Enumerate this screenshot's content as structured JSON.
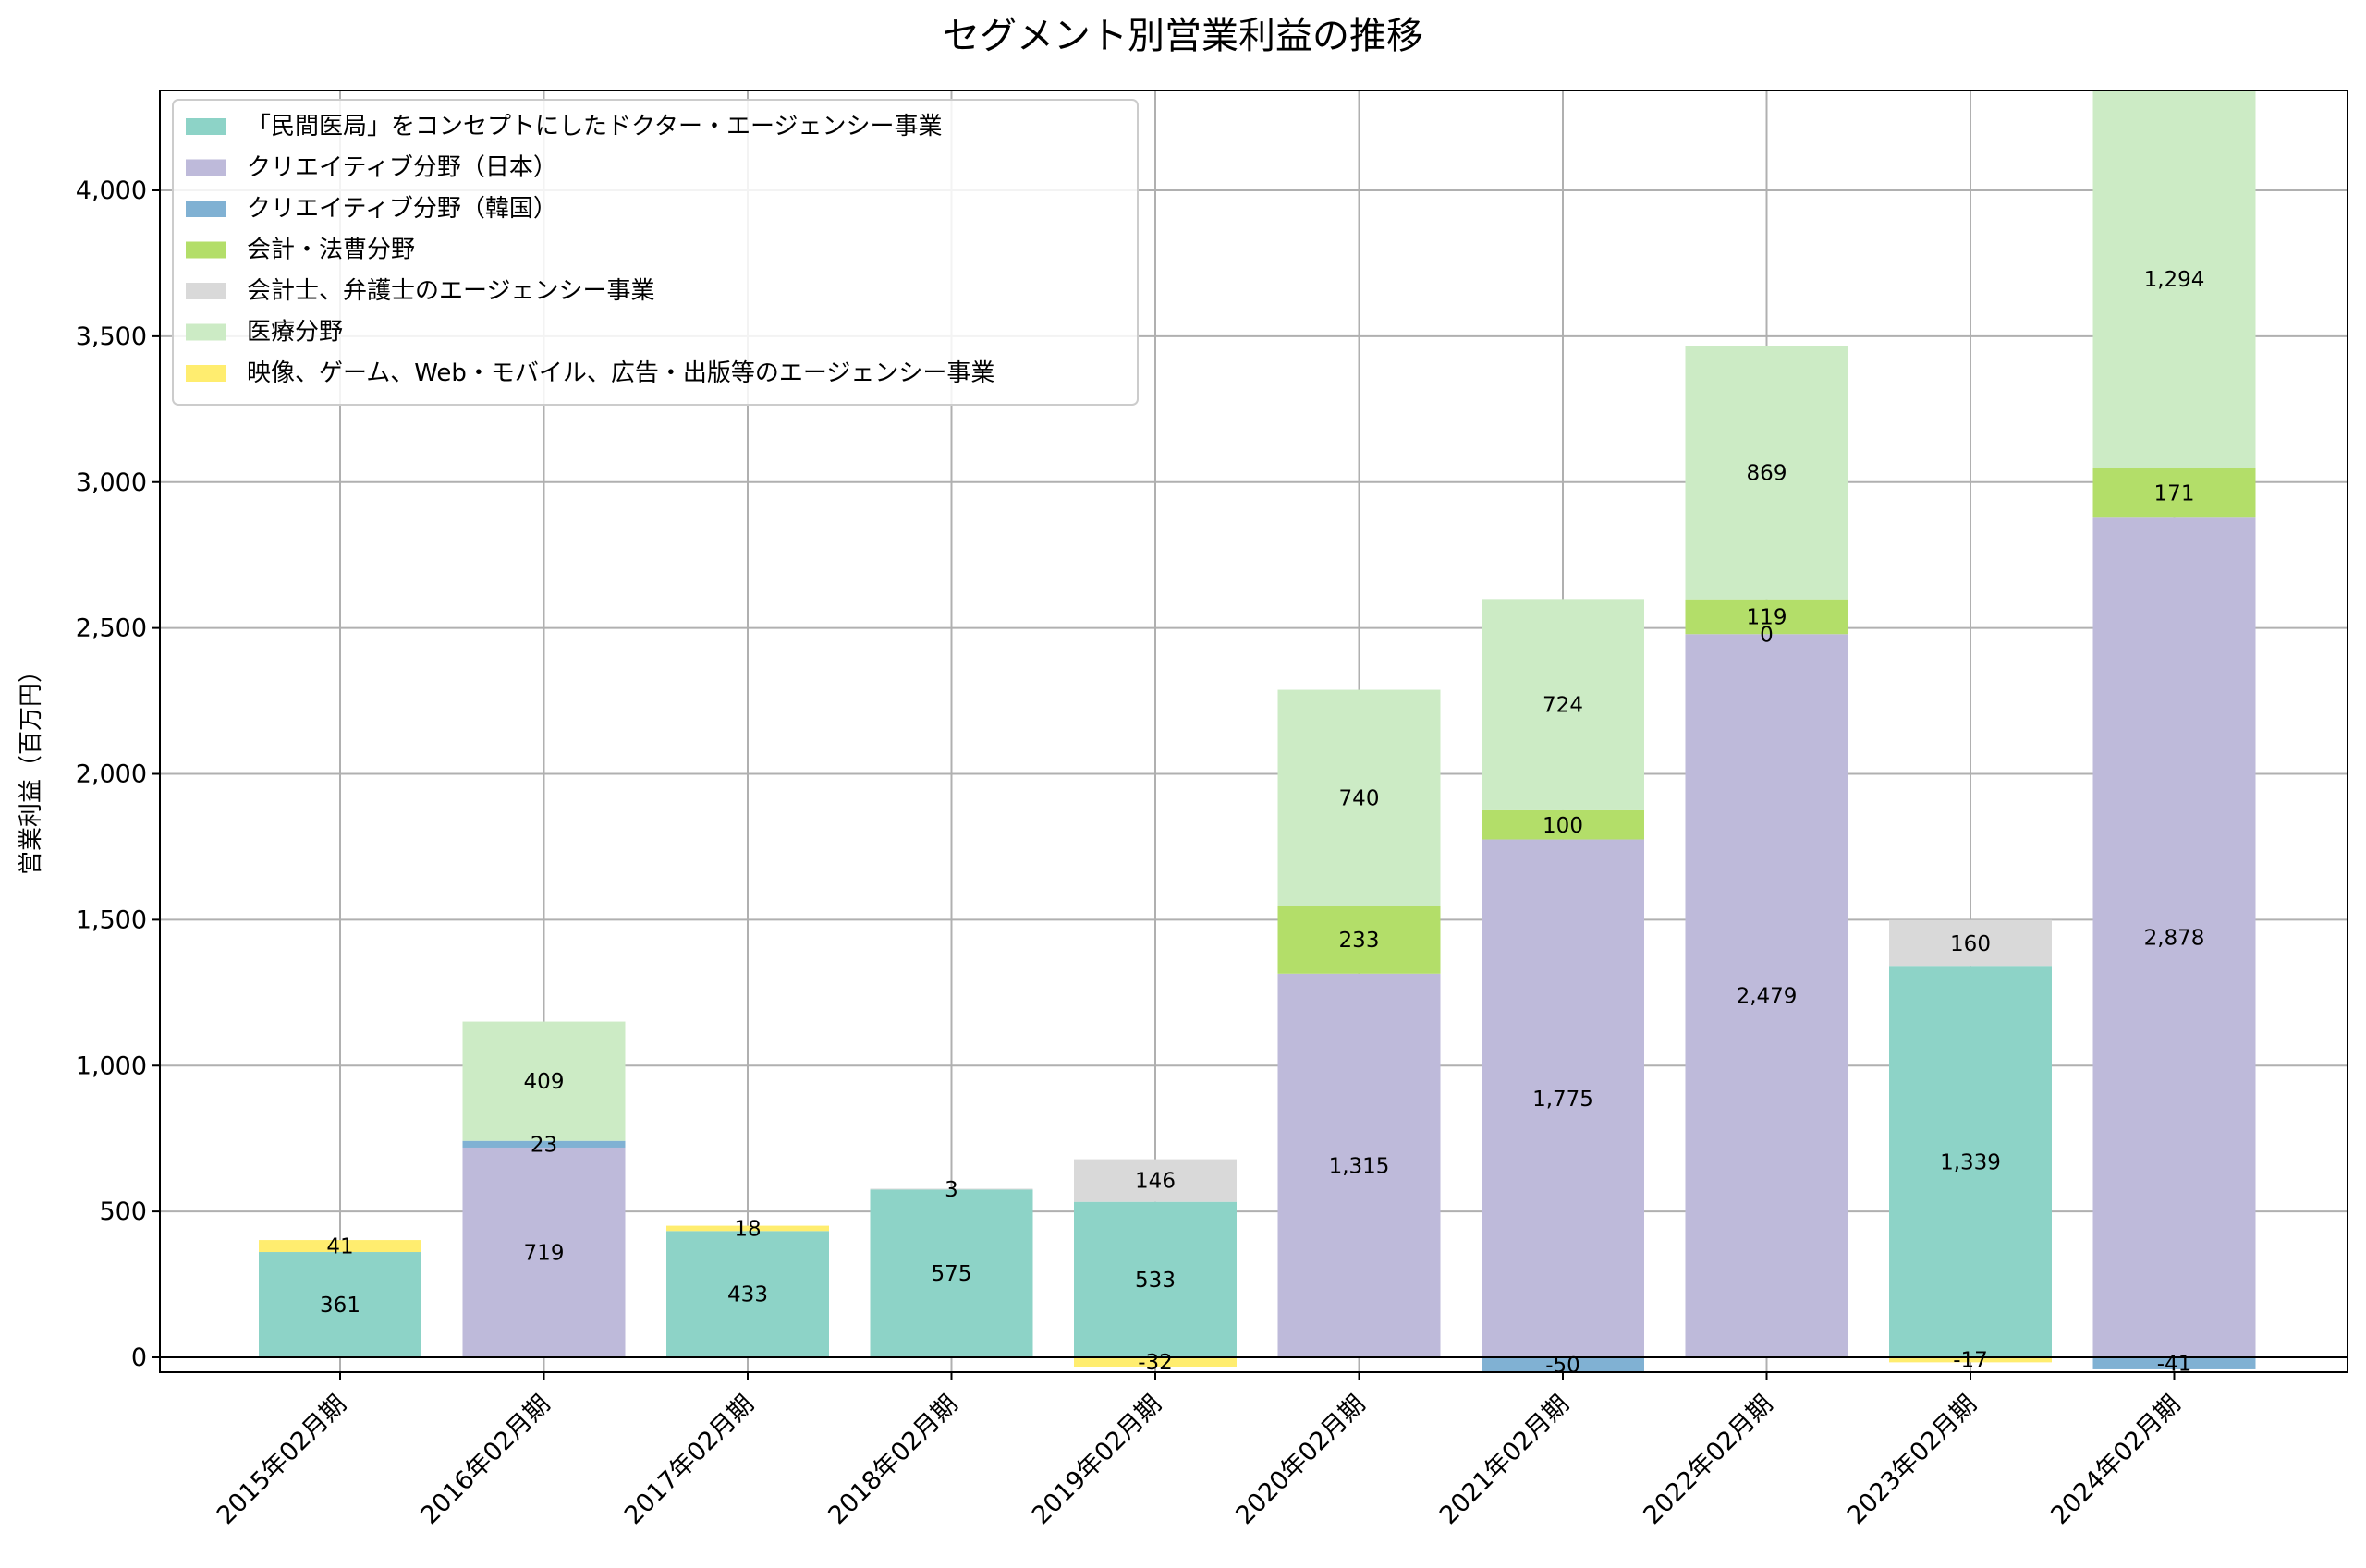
{
  "chart_data": {
    "type": "bar",
    "stacked": true,
    "title": "セグメント別営業利益の推移",
    "xlabel": "",
    "ylabel": "営業利益（百万円）",
    "ylim": [
      -50,
      4350
    ],
    "yticks": [
      0,
      500,
      1000,
      1500,
      2000,
      2500,
      3000,
      3500,
      4000
    ],
    "ytick_labels": [
      "0",
      "500",
      "1,000",
      "1,500",
      "2,000",
      "2,500",
      "3,000",
      "3,500",
      "4,000"
    ],
    "grid": true,
    "legend_position": "top-left",
    "categories": [
      "2015年02月期",
      "2016年02月期",
      "2017年02月期",
      "2018年02月期",
      "2019年02月期",
      "2020年02月期",
      "2021年02月期",
      "2022年02月期",
      "2023年02月期",
      "2024年02月期"
    ],
    "series": [
      {
        "name": "「民間医局」をコンセプトにしたドクター・エージェンシー事業",
        "color": "#8dd3c7",
        "values": [
          361,
          null,
          433,
          575,
          533,
          null,
          null,
          null,
          1339,
          null
        ],
        "labels": [
          "361",
          "",
          "433",
          "575",
          "533",
          "",
          "",
          "",
          "1,339",
          ""
        ]
      },
      {
        "name": "クリエイティブ分野（日本）",
        "color": "#bebada",
        "values": [
          null,
          719,
          null,
          null,
          null,
          1315,
          1775,
          2479,
          null,
          2878
        ],
        "labels": [
          "",
          "719",
          "",
          "",
          "",
          "1,315",
          "1,775",
          "2,479",
          "",
          "2,878"
        ]
      },
      {
        "name": "クリエイティブ分野（韓国）",
        "color": "#80b1d3",
        "values": [
          null,
          23,
          null,
          null,
          null,
          null,
          -50,
          0,
          null,
          -41
        ],
        "labels": [
          "",
          "23",
          "",
          "",
          "",
          "",
          "-50",
          "0",
          "",
          "-41"
        ]
      },
      {
        "name": "会計・法曹分野",
        "color": "#b3de69",
        "values": [
          null,
          null,
          null,
          null,
          null,
          233,
          100,
          119,
          null,
          171
        ],
        "labels": [
          "",
          "",
          "",
          "",
          "",
          "233",
          "100",
          "119",
          "",
          "171"
        ]
      },
      {
        "name": "会計士、弁護士のエージェンシー事業",
        "color": "#d9d9d9",
        "values": [
          null,
          null,
          null,
          3,
          146,
          null,
          null,
          null,
          160,
          null
        ],
        "labels": [
          "",
          "",
          "",
          "3",
          "146",
          "",
          "",
          "",
          "160",
          ""
        ]
      },
      {
        "name": "医療分野",
        "color": "#ccebc5",
        "values": [
          null,
          409,
          null,
          null,
          null,
          740,
          724,
          869,
          null,
          1294
        ],
        "labels": [
          "",
          "409",
          "",
          "",
          "",
          "740",
          "724",
          "869",
          "",
          "1,294"
        ]
      },
      {
        "name": "映像、ゲーム、Web・モバイル、広告・出版等のエージェンシー事業",
        "color": "#ffed6f",
        "values": [
          41,
          null,
          18,
          null,
          -32,
          null,
          null,
          null,
          -17,
          null
        ],
        "labels": [
          "41",
          "",
          "18",
          "",
          "-32",
          "",
          "",
          "",
          "-17",
          ""
        ]
      }
    ]
  }
}
